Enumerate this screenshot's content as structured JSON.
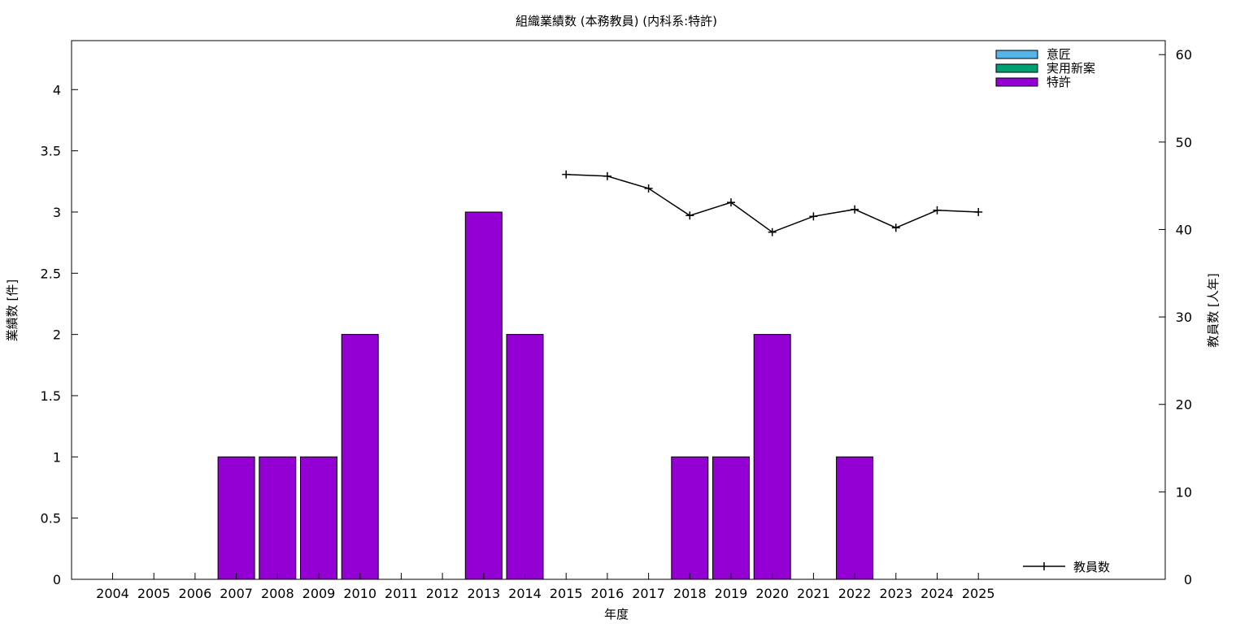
{
  "chart_data": {
    "type": "bar",
    "title": "組織業績数 (本務教員) (内科系:特許)",
    "xlabel": "年度",
    "ylabel": "業績数 [件]",
    "y2label": "教員数 [人年]",
    "ylim": [
      0,
      4.4
    ],
    "y2lim": [
      0,
      61.6
    ],
    "yticks": [
      "0",
      "0.5",
      "1",
      "1.5",
      "2",
      "2.5",
      "3",
      "3.5",
      "4"
    ],
    "y2ticks": [
      "0",
      "10",
      "20",
      "30",
      "40",
      "50",
      "60"
    ],
    "categories": [
      "2004",
      "2005",
      "2006",
      "2007",
      "2008",
      "2009",
      "2010",
      "2011",
      "2012",
      "2013",
      "2014",
      "2015",
      "2016",
      "2017",
      "2018",
      "2019",
      "2020",
      "2021",
      "2022",
      "2023",
      "2024",
      "2025"
    ],
    "series": [
      {
        "name": "意匠",
        "color": "#56b4e9",
        "values": [
          0,
          0,
          0,
          0,
          0,
          0,
          0,
          0,
          0,
          0,
          0,
          0,
          0,
          0,
          0,
          0,
          0,
          0,
          0,
          0,
          0,
          0
        ]
      },
      {
        "name": "実用新案",
        "color": "#009e73",
        "values": [
          0,
          0,
          0,
          0,
          0,
          0,
          0,
          0,
          0,
          0,
          0,
          0,
          0,
          0,
          0,
          0,
          0,
          0,
          0,
          0,
          0,
          0
        ]
      },
      {
        "name": "特許",
        "color": "#9400d3",
        "values": [
          0,
          0,
          0,
          1,
          1,
          1,
          2,
          0,
          0,
          3,
          2,
          0,
          0,
          0,
          1,
          1,
          2,
          0,
          1,
          0,
          0,
          0
        ]
      }
    ],
    "line_series": {
      "name": "教員数",
      "axis": "y2",
      "color": "#000000",
      "x": [
        "2015",
        "2016",
        "2017",
        "2018",
        "2019",
        "2020",
        "2021",
        "2022",
        "2023",
        "2024",
        "2025"
      ],
      "values": [
        46.3,
        46.1,
        44.7,
        41.6,
        43.1,
        39.7,
        41.5,
        42.3,
        40.2,
        42.2,
        42.0
      ]
    },
    "grid": false,
    "legend_position": "top-right"
  }
}
